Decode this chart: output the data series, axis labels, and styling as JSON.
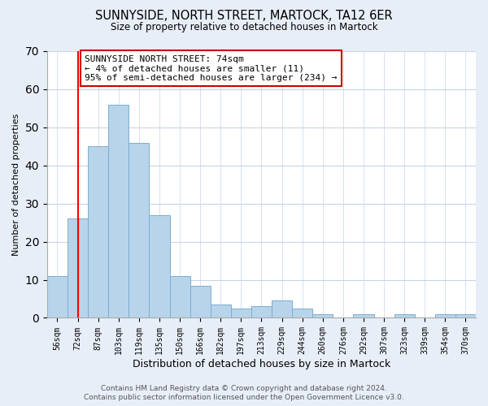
{
  "title": "SUNNYSIDE, NORTH STREET, MARTOCK, TA12 6ER",
  "subtitle": "Size of property relative to detached houses in Martock",
  "xlabel": "Distribution of detached houses by size in Martock",
  "ylabel": "Number of detached properties",
  "bins": [
    "56sqm",
    "72sqm",
    "87sqm",
    "103sqm",
    "119sqm",
    "135sqm",
    "150sqm",
    "166sqm",
    "182sqm",
    "197sqm",
    "213sqm",
    "229sqm",
    "244sqm",
    "260sqm",
    "276sqm",
    "292sqm",
    "307sqm",
    "323sqm",
    "339sqm",
    "354sqm",
    "370sqm"
  ],
  "values": [
    11,
    26,
    45,
    56,
    46,
    27,
    11,
    8.5,
    3.5,
    2.5,
    3,
    4.5,
    2.5,
    1,
    0,
    1,
    0,
    1,
    0,
    1,
    1
  ],
  "bar_color": "#b8d4ea",
  "bar_edge_color": "#7aaed0",
  "ylim": [
    0,
    70
  ],
  "yticks": [
    0,
    10,
    20,
    30,
    40,
    50,
    60,
    70
  ],
  "red_line_x": 1,
  "annotation_title": "SUNNYSIDE NORTH STREET: 74sqm",
  "annotation_line1": "← 4% of detached houses are smaller (11)",
  "annotation_line2": "95% of semi-detached houses are larger (234) →",
  "annotation_box_color": "#ffffff",
  "annotation_border_color": "#cc0000",
  "footer_line1": "Contains HM Land Registry data © Crown copyright and database right 2024.",
  "footer_line2": "Contains public sector information licensed under the Open Government Licence v3.0.",
  "background_color": "#e8eef8",
  "plot_background_color": "#ffffff",
  "grid_color": "#c8d4e8"
}
